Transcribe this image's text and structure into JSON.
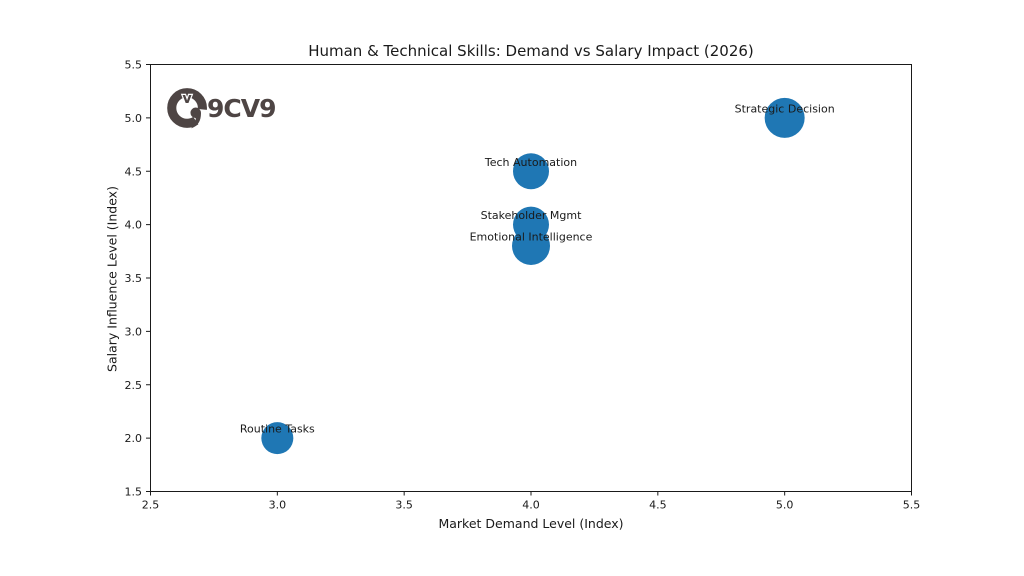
{
  "logo": {
    "brand": "9CV9",
    "color": "#4e4544"
  },
  "chart_data": {
    "type": "scatter",
    "title": "Human & Technical Skills: Demand vs Salary Impact (2026)",
    "xlabel": "Market Demand Level (Index)",
    "ylabel": "Salary Influence Level (Index)",
    "xlim": [
      2.5,
      5.5
    ],
    "ylim": [
      1.5,
      5.5
    ],
    "x_ticks": [
      2.5,
      3.0,
      3.5,
      4.0,
      4.5,
      5.0,
      5.5
    ],
    "x_tick_labels": [
      "2.5",
      "3.0",
      "3.5",
      "4.0",
      "4.5",
      "5.0",
      "5.5"
    ],
    "y_ticks": [
      1.5,
      2.0,
      2.5,
      3.0,
      3.5,
      4.0,
      4.5,
      5.0,
      5.5
    ],
    "y_tick_labels": [
      "1.5",
      "2.0",
      "2.5",
      "3.0",
      "3.5",
      "4.0",
      "4.5",
      "5.0",
      "5.5"
    ],
    "grid": false,
    "legend": null,
    "marker_color": "#1f77b4",
    "text_color": "#1a1a1a",
    "points": [
      {
        "label": "Routine Tasks",
        "x": 3.0,
        "y": 2.0,
        "radius_px": 16
      },
      {
        "label": "Emotional Intelligence",
        "x": 4.0,
        "y": 3.8,
        "radius_px": 19
      },
      {
        "label": "Stakeholder Mgmt",
        "x": 4.0,
        "y": 4.0,
        "radius_px": 18
      },
      {
        "label": "Tech Automation",
        "x": 4.0,
        "y": 4.5,
        "radius_px": 18
      },
      {
        "label": "Strategic Decision",
        "x": 5.0,
        "y": 5.0,
        "radius_px": 20
      }
    ]
  }
}
